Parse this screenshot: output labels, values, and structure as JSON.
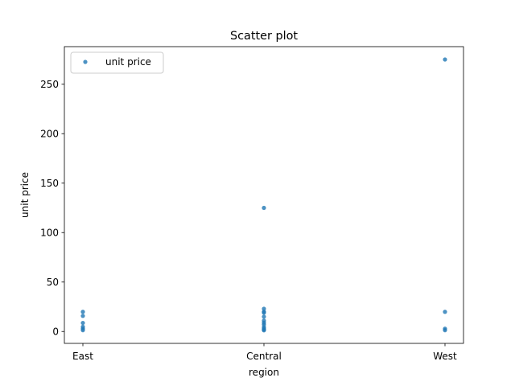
{
  "chart_data": {
    "type": "scatter",
    "title": "Scatter plot",
    "xlabel": "region",
    "ylabel": "unit price",
    "categories": [
      "East",
      "Central",
      "West"
    ],
    "ylim": [
      -12,
      288
    ],
    "yticks": [
      0,
      50,
      100,
      150,
      200,
      250
    ],
    "grid": false,
    "legend": {
      "position": "top-left",
      "entries": [
        "unit price"
      ]
    },
    "color": "#1f77b4",
    "series": [
      {
        "name": "unit price",
        "points": [
          {
            "x": "East",
            "y": 1.3
          },
          {
            "x": "East",
            "y": 2.9
          },
          {
            "x": "East",
            "y": 4.8
          },
          {
            "x": "East",
            "y": 8.7
          },
          {
            "x": "East",
            "y": 15.8
          },
          {
            "x": "East",
            "y": 19.9
          },
          {
            "x": "Central",
            "y": 1.2
          },
          {
            "x": "Central",
            "y": 2.0
          },
          {
            "x": "Central",
            "y": 3.0
          },
          {
            "x": "Central",
            "y": 4.5
          },
          {
            "x": "Central",
            "y": 7.0
          },
          {
            "x": "Central",
            "y": 8.9
          },
          {
            "x": "Central",
            "y": 11.0
          },
          {
            "x": "Central",
            "y": 15.0
          },
          {
            "x": "Central",
            "y": 19.0
          },
          {
            "x": "Central",
            "y": 20.0
          },
          {
            "x": "Central",
            "y": 23.0
          },
          {
            "x": "Central",
            "y": 125.0
          },
          {
            "x": "West",
            "y": 1.3
          },
          {
            "x": "West",
            "y": 2.9
          },
          {
            "x": "West",
            "y": 19.9
          },
          {
            "x": "West",
            "y": 275.0
          }
        ]
      }
    ]
  }
}
